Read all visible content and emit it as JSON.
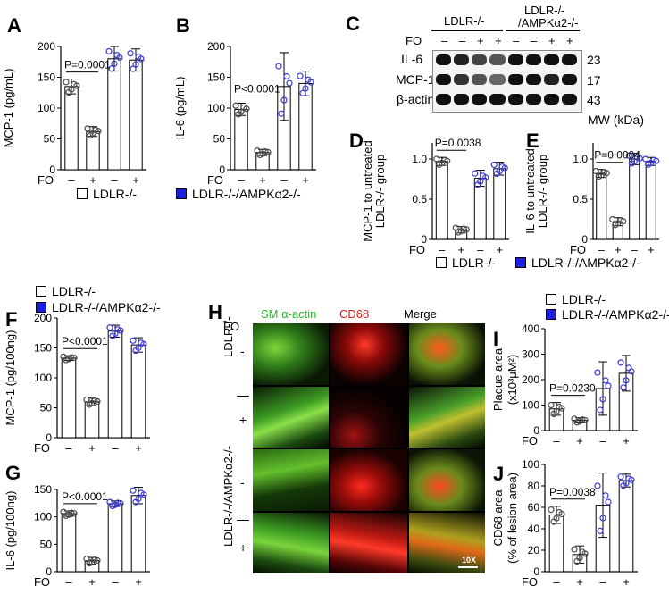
{
  "colors": {
    "ldlr_marker": "#ffffff",
    "ampk_marker": "#1f1fe0",
    "open_dot": "#4a4a4a",
    "blue_dot": "#3a3ad6"
  },
  "panels": {
    "A": {
      "label": "A",
      "ylabel": "MCP-1 (pg/mL)",
      "ticks": [
        "0",
        "50",
        "100",
        "150",
        "200"
      ],
      "p": "P=0.0001",
      "fo": "FO",
      "signs": [
        "–",
        "+",
        "–",
        "+"
      ]
    },
    "B": {
      "label": "B",
      "ylabel": "IL-6 (pg/mL)",
      "ticks": [
        "0",
        "50",
        "100",
        "150",
        "200"
      ],
      "p": "P<0.0001",
      "fo": "FO",
      "signs": [
        "–",
        "+",
        "–",
        "+"
      ]
    },
    "C": {
      "label": "C",
      "g1": "LDLR-/-",
      "g2a": "LDLR-/-",
      "g2b": "/AMPKα2-/-",
      "fo": "FO",
      "fo_signs": [
        "–",
        "–",
        "+",
        "+",
        "–",
        "–",
        "+",
        "+"
      ],
      "rows": [
        "IL-6",
        "MCP-1",
        "β-actin"
      ],
      "mw": [
        "23",
        "17",
        "43"
      ],
      "mw_label": "MW (kDa)"
    },
    "D": {
      "label": "D",
      "ylabel1": "MCP-1 to untreated",
      "ylabel2": "LDLR-/- group",
      "ticks": [
        "0",
        "0.5",
        "1.0"
      ],
      "p": "P=0.0038",
      "fo": "FO",
      "signs": [
        "–",
        "+",
        "–",
        "+"
      ]
    },
    "E": {
      "label": "E",
      "ylabel1": "IL-6 to untreated",
      "ylabel2": "LDLR-/- group",
      "ticks": [
        "0",
        "0.5",
        "1.0"
      ],
      "p": "P=0.0004",
      "fo": "FO",
      "signs": [
        "–",
        "+",
        "–",
        "+"
      ]
    },
    "F": {
      "label": "F",
      "ylabel": "MCP-1 (pg/100ng)",
      "ticks": [
        "0",
        "50",
        "100",
        "150",
        "200"
      ],
      "p": "P<0.0001",
      "fo": "FO",
      "signs": [
        "–",
        "+",
        "–",
        "+"
      ]
    },
    "G": {
      "label": "G",
      "ylabel": "IL-6 (pg/100ng)",
      "ticks": [
        "0",
        "50",
        "100",
        "150"
      ],
      "p": "P<0.0001",
      "fo": "FO",
      "signs": [
        "–",
        "+",
        "–",
        "+"
      ]
    },
    "H": {
      "label": "H",
      "fo": "FO",
      "cols": [
        "SM α-actin",
        "CD68",
        "Merge"
      ],
      "row1": "LDLR-/-",
      "row2": "LDLR-/-/AMPKα2-/-",
      "signs": [
        "-",
        "+",
        "-",
        "+"
      ],
      "scale": "10X"
    },
    "I": {
      "label": "I",
      "ylabel1": "Plaque area",
      "ylabel2": "(x10³μM²)",
      "ticks": [
        "0",
        "100",
        "200",
        "300",
        "400"
      ],
      "p": "P=0.0230",
      "fo": "FO",
      "signs": [
        "–",
        "+",
        "–",
        "+"
      ]
    },
    "J": {
      "label": "J",
      "ylabel1": "CD68 area",
      "ylabel2": "(% of lesion area)",
      "ticks": [
        "0",
        "20",
        "40",
        "60",
        "80",
        "100"
      ],
      "p": "P=0.0038",
      "fo": "FO",
      "signs": [
        "–",
        "+",
        "–",
        "+"
      ]
    }
  },
  "legends": {
    "ldlr": "LDLR-/-",
    "ampk": "LDLR-/-/AMPKα2-/-"
  },
  "chart_data": [
    {
      "type": "bar",
      "panel": "A",
      "categories": [
        "–",
        "+",
        "–",
        "+"
      ],
      "values": [
        135,
        62,
        180,
        178
      ],
      "errors": [
        12,
        8,
        20,
        18
      ],
      "ylim": [
        0,
        200
      ]
    },
    {
      "type": "bar",
      "panel": "B",
      "categories": [
        "–",
        "+",
        "–",
        "+"
      ],
      "values": [
        98,
        28,
        135,
        140
      ],
      "errors": [
        10,
        5,
        55,
        20
      ],
      "ylim": [
        0,
        200
      ]
    },
    {
      "type": "bar",
      "panel": "D",
      "categories": [
        "–",
        "+",
        "–",
        "+"
      ],
      "values": [
        0.97,
        0.12,
        0.76,
        0.88
      ],
      "errors": [
        0.05,
        0.04,
        0.1,
        0.08
      ],
      "ylim": [
        0,
        1.2
      ]
    },
    {
      "type": "bar",
      "panel": "E",
      "categories": [
        "–",
        "+",
        "–",
        "+"
      ],
      "values": [
        0.82,
        0.22,
        1.0,
        0.97
      ],
      "errors": [
        0.05,
        0.05,
        0.07,
        0.05
      ],
      "ylim": [
        0,
        1.2
      ]
    },
    {
      "type": "bar",
      "panel": "F",
      "categories": [
        "–",
        "+",
        "–",
        "+"
      ],
      "values": [
        133,
        60,
        178,
        155
      ],
      "errors": [
        4,
        6,
        10,
        12
      ],
      "ylim": [
        0,
        200
      ]
    },
    {
      "type": "bar",
      "panel": "G",
      "categories": [
        "–",
        "+",
        "–",
        "+"
      ],
      "values": [
        106,
        20,
        124,
        139
      ],
      "errors": [
        5,
        6,
        5,
        15
      ],
      "ylim": [
        0,
        150
      ]
    },
    {
      "type": "bar",
      "panel": "I",
      "categories": [
        "–",
        "+",
        "–",
        "+"
      ],
      "values": [
        85,
        40,
        165,
        225
      ],
      "errors": [
        25,
        10,
        105,
        70
      ],
      "ylim": [
        0,
        400
      ]
    },
    {
      "type": "bar",
      "panel": "J",
      "categories": [
        "–",
        "+",
        "–",
        "+"
      ],
      "values": [
        53,
        16,
        62,
        85
      ],
      "errors": [
        8,
        8,
        30,
        6
      ],
      "ylim": [
        0,
        100
      ]
    }
  ]
}
